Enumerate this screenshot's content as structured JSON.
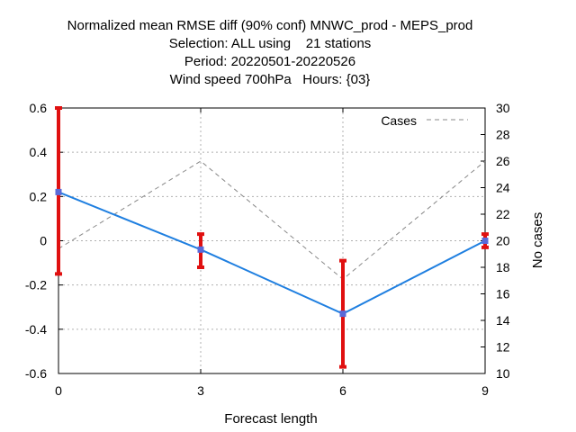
{
  "chart_data": {
    "type": "line",
    "title_lines": [
      "Normalized mean RMSE diff (90% conf) MNWC_prod - MEPS_prod",
      "Selection: ALL using    21 stations",
      "Period: 20220501-20220526",
      "Wind speed 700hPa   Hours: {03}"
    ],
    "xlabel": "Forecast length",
    "ylabel": "",
    "y2label": "No cases",
    "x": [
      0,
      3,
      6,
      9
    ],
    "xlim": [
      0,
      9
    ],
    "ylim": [
      -0.6,
      0.6
    ],
    "y2lim": [
      10,
      30
    ],
    "x_ticks": [
      "0",
      "3",
      "6",
      "9"
    ],
    "y_ticks": [
      "-0.6",
      "-0.4",
      "-0.2",
      "0",
      "0.2",
      "0.4",
      "0.6"
    ],
    "y2_ticks": [
      "10",
      "12",
      "14",
      "16",
      "18",
      "20",
      "22",
      "24",
      "26",
      "28",
      "30"
    ],
    "grid": true,
    "legend_position": "top-right",
    "series": [
      {
        "name": "",
        "axis": "left",
        "color": "#1f7fe0",
        "values": [
          0.22,
          -0.04,
          -0.33,
          0.0
        ],
        "error_low": [
          -0.15,
          -0.12,
          -0.57,
          -0.03
        ],
        "error_high": [
          0.6,
          0.03,
          -0.09,
          0.03
        ],
        "error_color": "#e01010"
      },
      {
        "name": "Cases",
        "axis": "right",
        "color": "#888888",
        "dashed": true,
        "values": [
          19.4,
          26.0,
          17.1,
          26.0
        ]
      }
    ]
  }
}
